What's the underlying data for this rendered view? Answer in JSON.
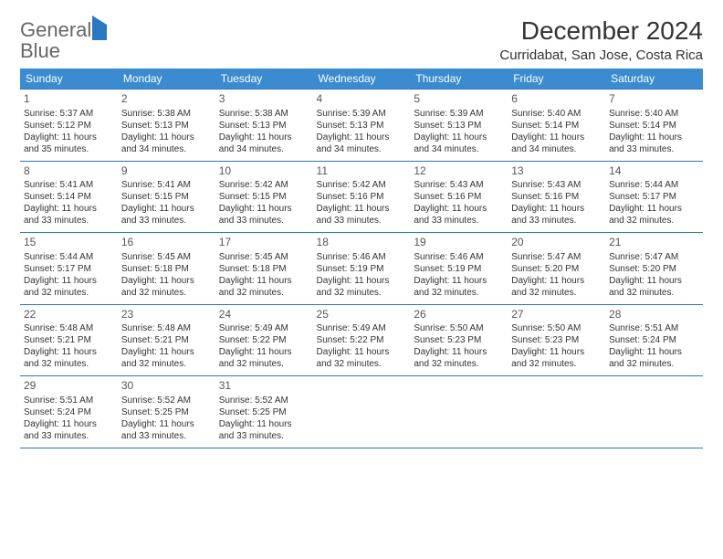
{
  "logo": {
    "word1": "General",
    "word2": "Blue"
  },
  "title": "December 2024",
  "location": "Curridabat, San Jose, Costa Rica",
  "colors": {
    "header_bg": "#3a8bd0",
    "header_text": "#ffffff",
    "row_border": "#2b77c0",
    "body_text": "#333333",
    "logo_gray": "#666666",
    "logo_blue": "#2b77c0",
    "page_bg": "#ffffff"
  },
  "weekdays": [
    "Sunday",
    "Monday",
    "Tuesday",
    "Wednesday",
    "Thursday",
    "Friday",
    "Saturday"
  ],
  "cell_fontsize": 10,
  "header_fontsize": 12,
  "title_fontsize": 28,
  "location_fontsize": 15,
  "weeks": [
    [
      {
        "n": "1",
        "sr": "Sunrise: 5:37 AM",
        "ss": "Sunset: 5:12 PM",
        "d1": "Daylight: 11 hours",
        "d2": "and 35 minutes."
      },
      {
        "n": "2",
        "sr": "Sunrise: 5:38 AM",
        "ss": "Sunset: 5:13 PM",
        "d1": "Daylight: 11 hours",
        "d2": "and 34 minutes."
      },
      {
        "n": "3",
        "sr": "Sunrise: 5:38 AM",
        "ss": "Sunset: 5:13 PM",
        "d1": "Daylight: 11 hours",
        "d2": "and 34 minutes."
      },
      {
        "n": "4",
        "sr": "Sunrise: 5:39 AM",
        "ss": "Sunset: 5:13 PM",
        "d1": "Daylight: 11 hours",
        "d2": "and 34 minutes."
      },
      {
        "n": "5",
        "sr": "Sunrise: 5:39 AM",
        "ss": "Sunset: 5:13 PM",
        "d1": "Daylight: 11 hours",
        "d2": "and 34 minutes."
      },
      {
        "n": "6",
        "sr": "Sunrise: 5:40 AM",
        "ss": "Sunset: 5:14 PM",
        "d1": "Daylight: 11 hours",
        "d2": "and 34 minutes."
      },
      {
        "n": "7",
        "sr": "Sunrise: 5:40 AM",
        "ss": "Sunset: 5:14 PM",
        "d1": "Daylight: 11 hours",
        "d2": "and 33 minutes."
      }
    ],
    [
      {
        "n": "8",
        "sr": "Sunrise: 5:41 AM",
        "ss": "Sunset: 5:14 PM",
        "d1": "Daylight: 11 hours",
        "d2": "and 33 minutes."
      },
      {
        "n": "9",
        "sr": "Sunrise: 5:41 AM",
        "ss": "Sunset: 5:15 PM",
        "d1": "Daylight: 11 hours",
        "d2": "and 33 minutes."
      },
      {
        "n": "10",
        "sr": "Sunrise: 5:42 AM",
        "ss": "Sunset: 5:15 PM",
        "d1": "Daylight: 11 hours",
        "d2": "and 33 minutes."
      },
      {
        "n": "11",
        "sr": "Sunrise: 5:42 AM",
        "ss": "Sunset: 5:16 PM",
        "d1": "Daylight: 11 hours",
        "d2": "and 33 minutes."
      },
      {
        "n": "12",
        "sr": "Sunrise: 5:43 AM",
        "ss": "Sunset: 5:16 PM",
        "d1": "Daylight: 11 hours",
        "d2": "and 33 minutes."
      },
      {
        "n": "13",
        "sr": "Sunrise: 5:43 AM",
        "ss": "Sunset: 5:16 PM",
        "d1": "Daylight: 11 hours",
        "d2": "and 33 minutes."
      },
      {
        "n": "14",
        "sr": "Sunrise: 5:44 AM",
        "ss": "Sunset: 5:17 PM",
        "d1": "Daylight: 11 hours",
        "d2": "and 32 minutes."
      }
    ],
    [
      {
        "n": "15",
        "sr": "Sunrise: 5:44 AM",
        "ss": "Sunset: 5:17 PM",
        "d1": "Daylight: 11 hours",
        "d2": "and 32 minutes."
      },
      {
        "n": "16",
        "sr": "Sunrise: 5:45 AM",
        "ss": "Sunset: 5:18 PM",
        "d1": "Daylight: 11 hours",
        "d2": "and 32 minutes."
      },
      {
        "n": "17",
        "sr": "Sunrise: 5:45 AM",
        "ss": "Sunset: 5:18 PM",
        "d1": "Daylight: 11 hours",
        "d2": "and 32 minutes."
      },
      {
        "n": "18",
        "sr": "Sunrise: 5:46 AM",
        "ss": "Sunset: 5:19 PM",
        "d1": "Daylight: 11 hours",
        "d2": "and 32 minutes."
      },
      {
        "n": "19",
        "sr": "Sunrise: 5:46 AM",
        "ss": "Sunset: 5:19 PM",
        "d1": "Daylight: 11 hours",
        "d2": "and 32 minutes."
      },
      {
        "n": "20",
        "sr": "Sunrise: 5:47 AM",
        "ss": "Sunset: 5:20 PM",
        "d1": "Daylight: 11 hours",
        "d2": "and 32 minutes."
      },
      {
        "n": "21",
        "sr": "Sunrise: 5:47 AM",
        "ss": "Sunset: 5:20 PM",
        "d1": "Daylight: 11 hours",
        "d2": "and 32 minutes."
      }
    ],
    [
      {
        "n": "22",
        "sr": "Sunrise: 5:48 AM",
        "ss": "Sunset: 5:21 PM",
        "d1": "Daylight: 11 hours",
        "d2": "and 32 minutes."
      },
      {
        "n": "23",
        "sr": "Sunrise: 5:48 AM",
        "ss": "Sunset: 5:21 PM",
        "d1": "Daylight: 11 hours",
        "d2": "and 32 minutes."
      },
      {
        "n": "24",
        "sr": "Sunrise: 5:49 AM",
        "ss": "Sunset: 5:22 PM",
        "d1": "Daylight: 11 hours",
        "d2": "and 32 minutes."
      },
      {
        "n": "25",
        "sr": "Sunrise: 5:49 AM",
        "ss": "Sunset: 5:22 PM",
        "d1": "Daylight: 11 hours",
        "d2": "and 32 minutes."
      },
      {
        "n": "26",
        "sr": "Sunrise: 5:50 AM",
        "ss": "Sunset: 5:23 PM",
        "d1": "Daylight: 11 hours",
        "d2": "and 32 minutes."
      },
      {
        "n": "27",
        "sr": "Sunrise: 5:50 AM",
        "ss": "Sunset: 5:23 PM",
        "d1": "Daylight: 11 hours",
        "d2": "and 32 minutes."
      },
      {
        "n": "28",
        "sr": "Sunrise: 5:51 AM",
        "ss": "Sunset: 5:24 PM",
        "d1": "Daylight: 11 hours",
        "d2": "and 32 minutes."
      }
    ],
    [
      {
        "n": "29",
        "sr": "Sunrise: 5:51 AM",
        "ss": "Sunset: 5:24 PM",
        "d1": "Daylight: 11 hours",
        "d2": "and 33 minutes."
      },
      {
        "n": "30",
        "sr": "Sunrise: 5:52 AM",
        "ss": "Sunset: 5:25 PM",
        "d1": "Daylight: 11 hours",
        "d2": "and 33 minutes."
      },
      {
        "n": "31",
        "sr": "Sunrise: 5:52 AM",
        "ss": "Sunset: 5:25 PM",
        "d1": "Daylight: 11 hours",
        "d2": "and 33 minutes."
      },
      null,
      null,
      null,
      null
    ]
  ]
}
